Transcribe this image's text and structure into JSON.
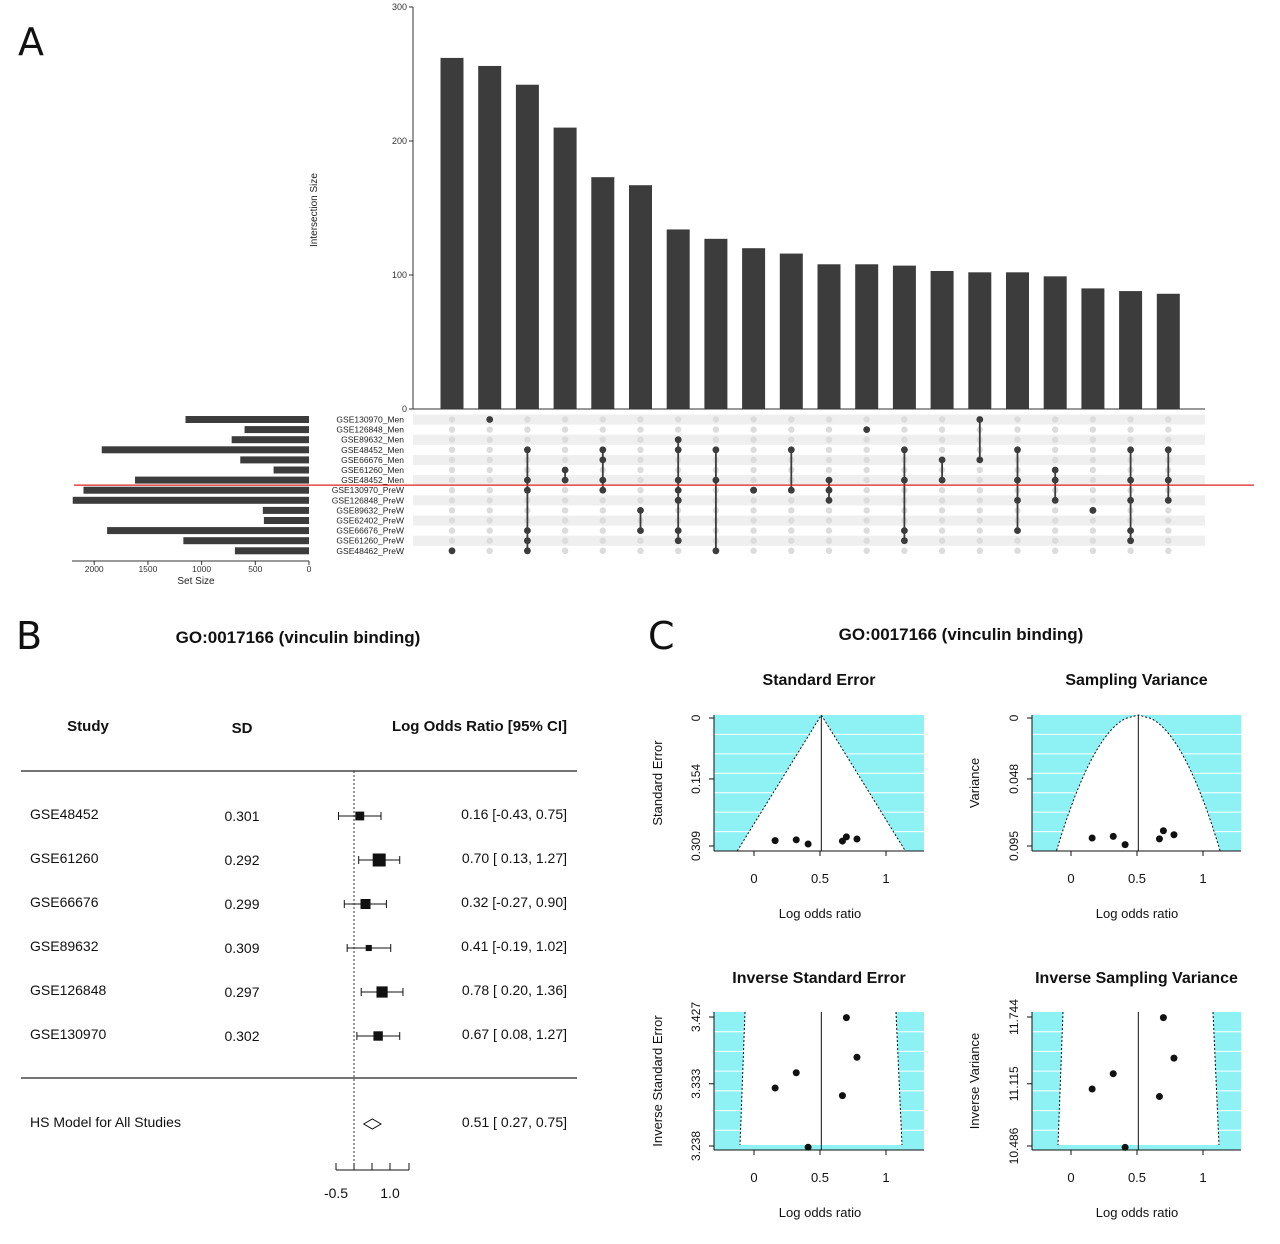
{
  "panels": {
    "a_letter": "A",
    "b_letter": "B",
    "c_letter": "C"
  },
  "colors": {
    "bar": "#3c3c3c",
    "dot_active": "#3c3c3c",
    "dot_inactive": "#dcdcdc",
    "stripe": "#efefef",
    "divider": "#e0221f",
    "funnel_fill": "#8ef2f5",
    "funnel_grid": "#ffffff"
  },
  "chart_data": [
    {
      "type": "bar",
      "id": "upset",
      "ylabel": "Intersection Size",
      "ylim": [
        0,
        300
      ],
      "yticks": [
        0,
        100,
        200,
        300
      ],
      "values": [
        262,
        256,
        242,
        210,
        173,
        167,
        134,
        127,
        120,
        116,
        108,
        108,
        107,
        103,
        102,
        102,
        99,
        90,
        88,
        86
      ],
      "set_names": [
        "GSE130970_Men",
        "GSE126848_Men",
        "GSE89632_Men",
        "GSE48452_Men",
        "GSE66676_Men",
        "GSE61260_Men",
        "GSE48452_Men",
        "GSE130970_PreW",
        "GSE126848_PreW",
        "GSE89632_PreW",
        "GSE62402_PreW",
        "GSE66676_PreW",
        "GSE61260_PreW",
        "GSE48462_PreW"
      ],
      "set_sizes": [
        1150,
        600,
        720,
        1930,
        640,
        330,
        1620,
        2100,
        2200,
        430,
        420,
        1880,
        1170,
        690
      ],
      "set_size_label": "Set Size",
      "set_size_ticks": [
        2000,
        1500,
        1000,
        500,
        0
      ],
      "set_size_max": 2300,
      "matrix": [
        [
          13
        ],
        [
          0
        ],
        [
          13,
          3,
          6,
          7,
          11,
          12
        ],
        [
          5,
          6
        ],
        [
          4,
          3,
          6,
          7
        ],
        [
          9,
          11
        ],
        [
          8,
          2,
          3,
          6,
          7,
          8,
          11,
          12
        ],
        [
          13,
          3,
          6
        ],
        [
          7,
          7
        ],
        [
          3,
          7
        ],
        [
          7,
          6,
          8
        ],
        [
          1
        ],
        [
          3,
          6,
          11,
          12
        ],
        [
          4,
          6
        ],
        [
          0,
          4
        ],
        [
          3,
          6,
          8,
          11
        ],
        [
          5,
          6,
          8
        ],
        [
          9,
          9
        ],
        [
          3,
          6,
          8,
          11,
          12
        ],
        [
          8,
          3,
          6
        ]
      ]
    },
    {
      "type": "forest",
      "id": "forest",
      "title": "GO:0017166 (vinculin binding)",
      "col_study": "Study",
      "col_sd": "SD",
      "col_ci": "Log Odds Ratio [95% CI]",
      "studies": [
        {
          "name": "GSE48452",
          "sd": "0.301",
          "est": 0.16,
          "lo": -0.43,
          "hi": 0.75,
          "ci": "0.16 [-0.43, 0.75]",
          "w": 0.8
        },
        {
          "name": "GSE61260",
          "sd": "0.292",
          "est": 0.7,
          "lo": 0.13,
          "hi": 1.27,
          "ci": "0.70 [ 0.13, 1.27]",
          "w": 1.5
        },
        {
          "name": "GSE66676",
          "sd": "0.299",
          "est": 0.32,
          "lo": -0.27,
          "hi": 0.9,
          "ci": "0.32 [-0.27, 0.90]",
          "w": 1.0
        },
        {
          "name": "GSE89632",
          "sd": "0.309",
          "est": 0.41,
          "lo": -0.19,
          "hi": 1.02,
          "ci": "0.41 [-0.19, 1.02]",
          "w": 0.35
        },
        {
          "name": "GSE126848",
          "sd": "0.297",
          "est": 0.78,
          "lo": 0.2,
          "hi": 1.36,
          "ci": "0.78 [ 0.20, 1.36]",
          "w": 1.2
        },
        {
          "name": "GSE130970",
          "sd": "0.302",
          "est": 0.67,
          "lo": 0.08,
          "hi": 1.27,
          "ci": "0.67 [ 0.08, 1.27]",
          "w": 0.9
        }
      ],
      "summary": {
        "name": "HS Model for All Studies",
        "est": 0.51,
        "lo": 0.27,
        "hi": 0.75,
        "ci": "0.51 [ 0.27, 0.75]"
      },
      "xtick_labels": [
        "-0.5",
        "1.0"
      ],
      "xtick_values": [
        -0.5,
        1.0
      ],
      "xlim": [
        -0.5,
        1.5
      ]
    },
    {
      "type": "scatter",
      "id": "funnel",
      "title": "GO:0017166 (vinculin binding)",
      "points": [
        {
          "x": 0.16,
          "se": 0.301
        },
        {
          "x": 0.7,
          "se": 0.292
        },
        {
          "x": 0.32,
          "se": 0.299
        },
        {
          "x": 0.41,
          "se": 0.309
        },
        {
          "x": 0.78,
          "se": 0.297
        },
        {
          "x": 0.67,
          "se": 0.302
        }
      ],
      "center": 0.51,
      "xlabel": "Log odds ratio",
      "xticks": [
        0,
        0.5,
        1
      ],
      "xlim": [
        -0.3,
        1.35
      ],
      "subplots": [
        {
          "title": "Standard Error",
          "ylabel": "Standard Error",
          "yticks": [
            "0",
            "0.154",
            "0.309"
          ],
          "ymin": 0,
          "ymax": 0.309,
          "kind": "se"
        },
        {
          "title": "Sampling Variance",
          "ylabel": "Variance",
          "yticks": [
            "0",
            "0.048",
            "0.095"
          ],
          "ymin": 0,
          "ymax": 0.095,
          "kind": "var"
        },
        {
          "title": "Inverse Standard Error",
          "ylabel": "Inverse Standard Error",
          "yticks": [
            "3.427",
            "3.333",
            "3.238"
          ],
          "ymin": 3.238,
          "ymax": 3.427,
          "kind": "ise"
        },
        {
          "title": "Inverse Sampling Variance",
          "ylabel": "Inverse Variance",
          "yticks": [
            "11.744",
            "11.115",
            "10.486"
          ],
          "ymin": 10.486,
          "ymax": 11.744,
          "kind": "ivar"
        }
      ]
    }
  ]
}
